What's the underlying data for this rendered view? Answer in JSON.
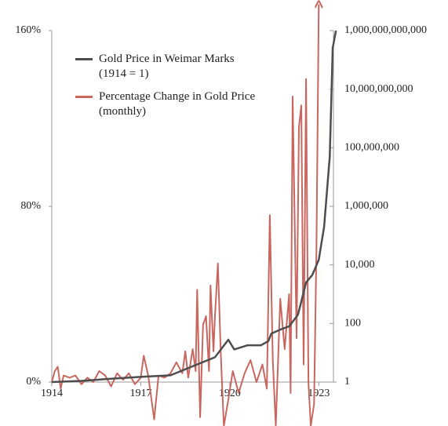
{
  "chart_data": {
    "type": "line",
    "xlim": [
      1914,
      1923.6
    ],
    "xticks": [
      1914,
      1917,
      1920,
      1923
    ],
    "ylim": [
      0,
      160
    ],
    "yticks": [
      {
        "value": 0,
        "label": "0%"
      },
      {
        "value": 80,
        "label": "80%"
      },
      {
        "value": 160,
        "label": "160%"
      }
    ],
    "y2lim": [
      1,
      1000000000000
    ],
    "y2log": true,
    "y2ticks": [
      1,
      100,
      {
        "value": 10000,
        "label": "10,000"
      },
      {
        "value": 1000000,
        "label": "1,000,000"
      },
      {
        "value": 100000000,
        "label": "100,000,000"
      },
      {
        "value": 10000000000,
        "label": "10,000,000,000"
      },
      {
        "value": 1000000000000,
        "label": "1,000,000,000,000"
      }
    ],
    "legend": "upper left",
    "series": [
      {
        "name": "Gold Price in Weimar Marks\n(1914 = 1)",
        "color": "#4d4d4d",
        "axis": "y2",
        "x": [
          1914,
          1915,
          1916,
          1917,
          1918,
          1919,
          1919.5,
          1919.95,
          1920.15,
          1920.6,
          1921.05,
          1921.3,
          1921.4,
          1921.7,
          1922.0,
          1922.3,
          1922.57,
          1922.78,
          1923.0,
          1923.18,
          1923.37,
          1923.47,
          1923.58
        ],
        "values": [
          1,
          1.1,
          1.3,
          1.5,
          1.7,
          4.4,
          7,
          28,
          13,
          18,
          18,
          25,
          45,
          62,
          80,
          200,
          2500,
          4500,
          15000,
          200000,
          50000000,
          260000000000,
          1000000000000
        ]
      },
      {
        "name": "Percentage Change in Gold Price\n(monthly)",
        "color": "#c8675f",
        "x": [
          1914.0,
          1914.1,
          1914.2,
          1914.3,
          1914.4,
          1914.6,
          1914.8,
          1915.0,
          1915.2,
          1915.4,
          1915.6,
          1915.8,
          1916.0,
          1916.2,
          1916.4,
          1916.6,
          1916.8,
          1917.0,
          1917.1,
          1917.25,
          1917.45,
          1917.6,
          1917.8,
          1918.0,
          1918.2,
          1918.4,
          1918.5,
          1918.6,
          1918.75,
          1918.85,
          1918.9,
          1919.0,
          1919.1,
          1919.2,
          1919.3,
          1919.35,
          1919.45,
          1919.5,
          1919.6,
          1919.7,
          1919.8,
          1919.95,
          1920.1,
          1920.3,
          1920.5,
          1920.7,
          1920.9,
          1921.1,
          1921.25,
          1921.35,
          1921.45,
          1921.55,
          1921.7,
          1921.85,
          1922.0,
          1922.05,
          1922.12,
          1922.25,
          1922.33,
          1922.41,
          1922.49,
          1922.57,
          1922.65,
          1922.73,
          1922.84,
          1922.92,
          1923.0
        ],
        "values": [
          0,
          5,
          7,
          -3,
          3,
          2,
          3,
          -1,
          2,
          0,
          5,
          3,
          -2,
          4,
          1,
          4,
          -1,
          2,
          12,
          3,
          -17,
          3,
          2,
          4,
          9,
          4,
          14,
          2,
          15,
          5,
          42,
          -16,
          26,
          30,
          5,
          44,
          14,
          30,
          54,
          12,
          -20,
          -8,
          5,
          -5,
          4,
          10,
          0,
          8,
          -3,
          76,
          10,
          -20,
          38,
          15,
          40,
          -5,
          130,
          20,
          116,
          126,
          8,
          138,
          0,
          -20,
          -10,
          60,
          172
        ]
      }
    ]
  }
}
